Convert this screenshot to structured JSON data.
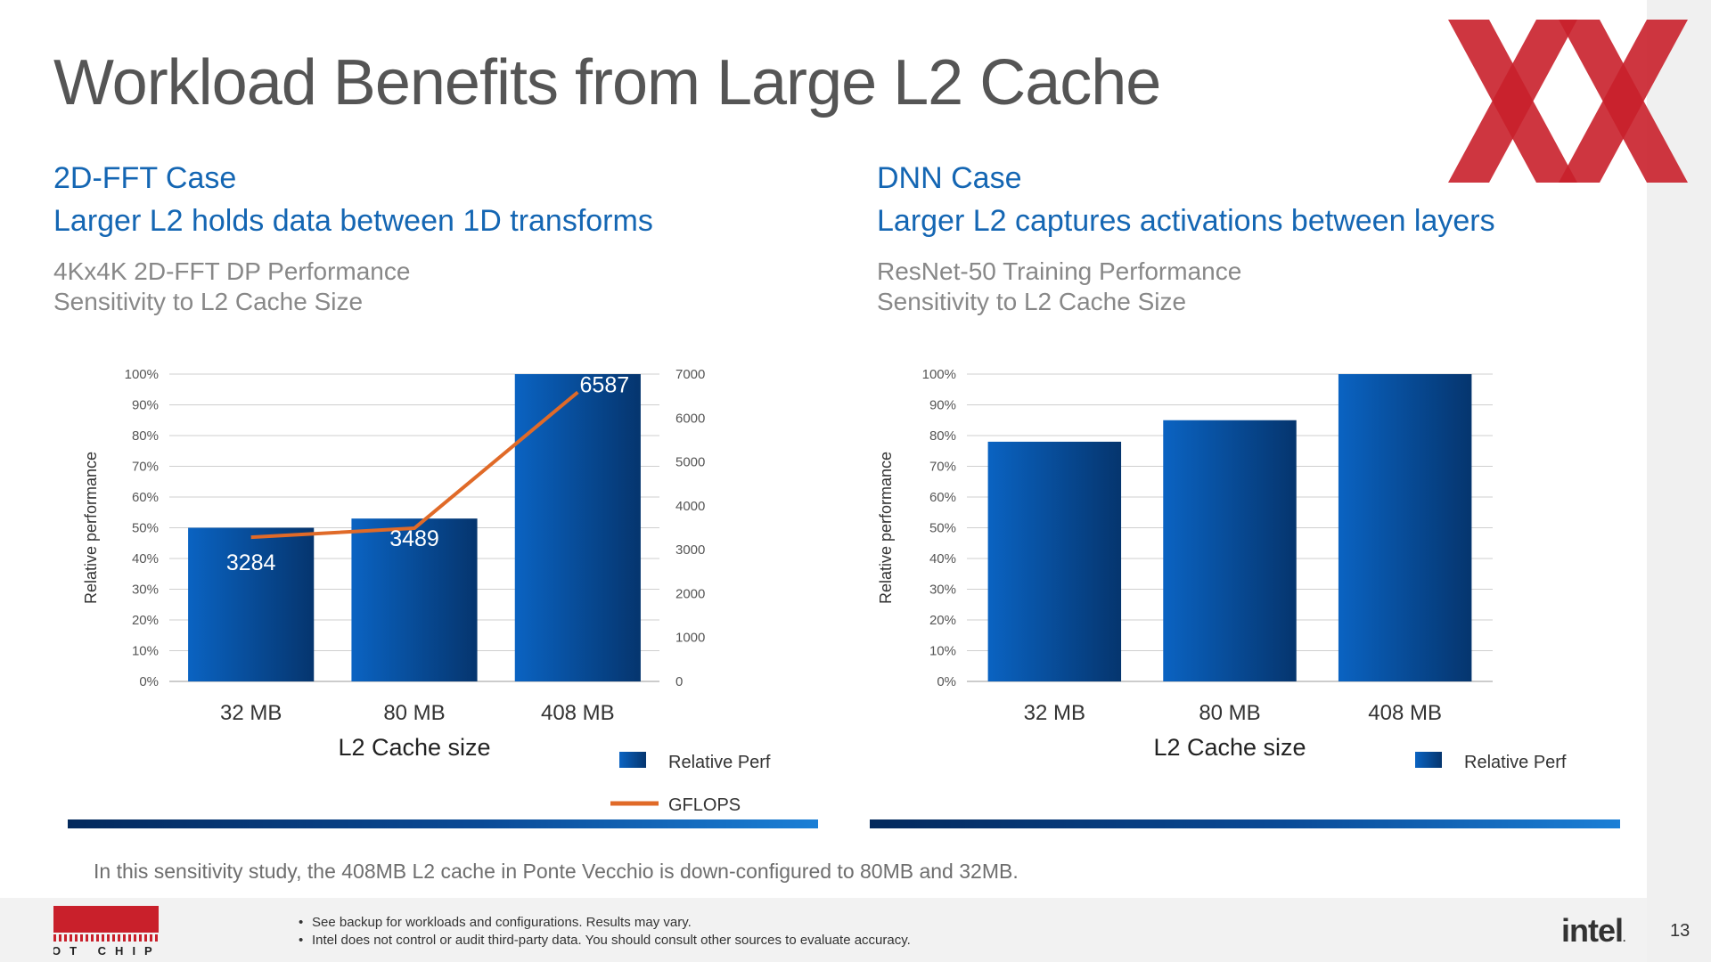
{
  "slide": {
    "title": "Workload Benefits from Large L2 Cache",
    "note": "In this sensitivity study, the 408MB L2 cache in Ponte Vecchio is down-configured to 80MB and 32MB.",
    "disclaimers": [
      "See backup for workloads and configurations. Results may vary.",
      "Intel does not control or audit third-party data.  You should consult other sources to evaluate accuracy."
    ],
    "page_number": "13",
    "footer_logo_text": "HOT CHIPS",
    "intel_logo": "intel",
    "intel_logo_dot": "."
  },
  "left_section": {
    "case_title": "2D-FFT Case",
    "case_subtitle": "Larger L2 holds data between 1D transforms",
    "chart_title_line1": "4Kx4K 2D-FFT DP Performance",
    "chart_title_line2": "Sensitivity to L2 Cache Size"
  },
  "right_section": {
    "case_title": "DNN Case",
    "case_subtitle": "Larger L2 captures activations between layers",
    "chart_title_line1": "ResNet-50 Training Performance",
    "chart_title_line2": "Sensitivity to L2 Cache Size"
  },
  "colors": {
    "bar_dark": "#05356e",
    "bar_light": "#0a63c2",
    "line": "#e06a28",
    "heading": "#1466b3",
    "logo_red": "#c9202b"
  },
  "chart_data": [
    {
      "type": "bar",
      "title": "4Kx4K 2D-FFT DP Performance Sensitivity to L2 Cache Size",
      "categories": [
        "32 MB",
        "80 MB",
        "408 MB"
      ],
      "xlabel": "L2 Cache size",
      "ylabel": "Relative performance",
      "ylim": [
        0,
        100
      ],
      "yticks": [
        "0%",
        "10%",
        "20%",
        "30%",
        "40%",
        "50%",
        "60%",
        "70%",
        "80%",
        "90%",
        "100%"
      ],
      "y2lim": [
        0,
        7000
      ],
      "y2ticks": [
        "0",
        "1000",
        "2000",
        "3000",
        "4000",
        "5000",
        "6000",
        "7000"
      ],
      "series": [
        {
          "name": "Relative Perf",
          "type": "bar",
          "axis": "left",
          "values": [
            50,
            53,
            100
          ]
        },
        {
          "name": "GFLOPS",
          "type": "line",
          "axis": "right",
          "values": [
            3284,
            3489,
            6587
          ]
        }
      ],
      "data_labels": [
        "3284",
        "3489",
        "6587"
      ],
      "grid": true,
      "legend": "bottom-right"
    },
    {
      "type": "bar",
      "title": "ResNet-50 Training Performance Sensitivity to L2 Cache Size",
      "categories": [
        "32 MB",
        "80 MB",
        "408 MB"
      ],
      "xlabel": "L2 Cache size",
      "ylabel": "Relative performance",
      "ylim": [
        0,
        100
      ],
      "yticks": [
        "0%",
        "10%",
        "20%",
        "30%",
        "40%",
        "50%",
        "60%",
        "70%",
        "80%",
        "90%",
        "100%"
      ],
      "series": [
        {
          "name": "Relative Perf",
          "type": "bar",
          "axis": "left",
          "values": [
            78,
            85,
            100
          ]
        }
      ],
      "grid": true,
      "legend": "bottom-right"
    }
  ]
}
